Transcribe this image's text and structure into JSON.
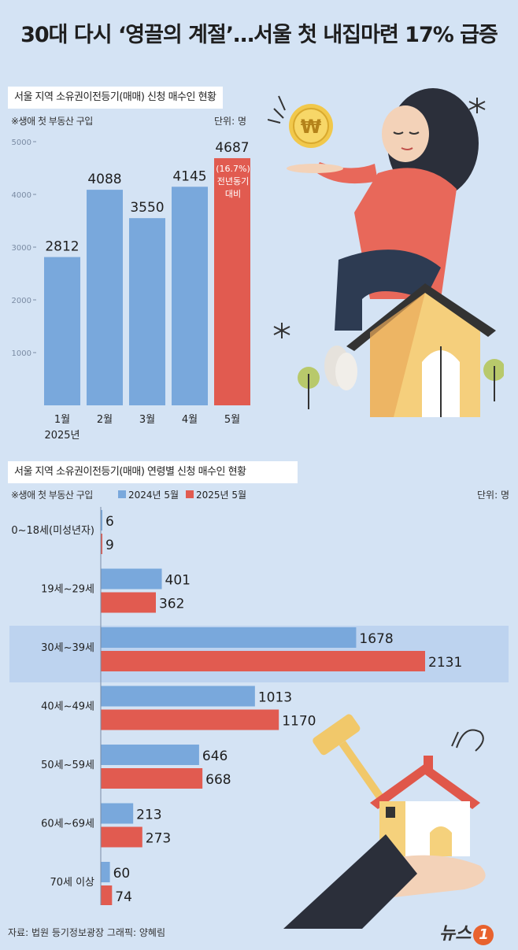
{
  "title": "30대 다시 ‘영끌의 계절’…서울 첫 내집마련 17% 급증",
  "chart1": {
    "label": "서울 지역 소유권이전등기(매매) 신청 매수인 현황",
    "note": "※생애 첫 부동산 구입",
    "unit": "단위: 명",
    "annotation": [
      "(16.7%)",
      "전년동기",
      "대비"
    ]
  },
  "chart2": {
    "label": "서울 지역 소유권이전등기(매매) 연령별 신청 매수인 현황",
    "note": "※생애 첫 부동산 구입",
    "unit": "단위: 명"
  },
  "footer": {
    "source": "자료: 법원 등기정보광장   그래픽: 양혜림",
    "logo_text": "뉴스",
    "logo_badge": "1"
  },
  "colors": {
    "blue": "#79a8dc",
    "red": "#e15b50",
    "highlight": "#bdd3ef",
    "background": "#d4e3f4"
  },
  "chart_data": [
    {
      "type": "bar",
      "categories": [
        "1월",
        "2월",
        "3월",
        "4월",
        "5월"
      ],
      "category_sublabel": "2025년",
      "values": [
        2812,
        4088,
        3550,
        4145,
        4687
      ],
      "highlight_index": 4,
      "yticks": [
        1000,
        2000,
        3000,
        4000,
        5000
      ],
      "ylim": [
        0,
        5000
      ],
      "grid": false
    },
    {
      "type": "bar",
      "orientation": "horizontal",
      "categories": [
        "0~18세(미성년자)",
        "19세~29세",
        "30세~39세",
        "40세~49세",
        "50세~59세",
        "60세~69세",
        "70세 이상"
      ],
      "series": [
        {
          "name": "2024년 5월",
          "color": "#79a8dc",
          "values": [
            6,
            401,
            1678,
            1013,
            646,
            213,
            60
          ]
        },
        {
          "name": "2025년 5월",
          "color": "#e15b50",
          "values": [
            9,
            362,
            2131,
            1170,
            668,
            273,
            74
          ]
        }
      ],
      "highlight_category": "30세~39세",
      "legend_position": "top-left",
      "xlim": [
        0,
        2131
      ]
    }
  ]
}
